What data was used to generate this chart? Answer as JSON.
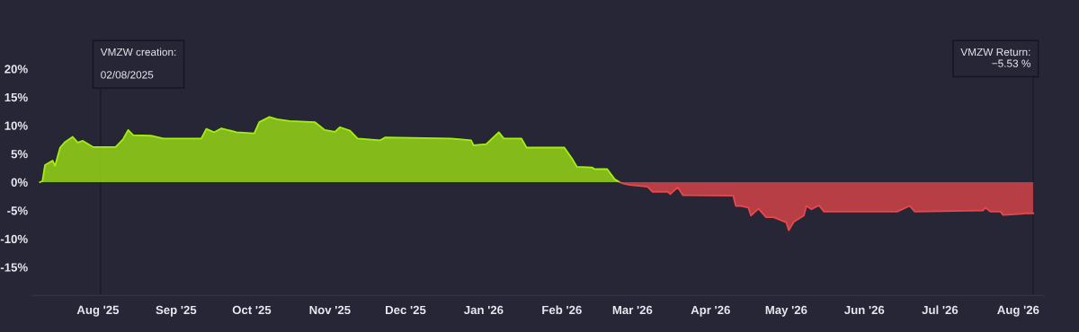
{
  "chart_data": {
    "type": "area",
    "series": [
      {
        "color": "#a4ee12",
        "x": [
          "2025-07-09",
          "2025-07-10",
          "2025-07-11",
          "2025-07-14",
          "2025-07-15",
          "2025-07-17",
          "2025-07-19",
          "2025-07-22",
          "2025-07-24",
          "2025-07-26",
          "2025-07-30",
          "2025-08-08",
          "2025-08-11",
          "2025-08-13",
          "2025-08-15",
          "2025-08-22",
          "2025-08-27",
          "2025-09-11",
          "2025-09-13",
          "2025-09-16",
          "2025-09-19",
          "2025-09-25",
          "2025-10-02",
          "2025-10-04",
          "2025-10-08",
          "2025-10-11",
          "2025-10-16",
          "2025-10-26",
          "2025-10-30",
          "2025-11-03",
          "2025-11-05",
          "2025-11-09",
          "2025-11-12",
          "2025-11-21",
          "2025-11-23",
          "2025-12-19",
          "2025-12-27",
          "2025-12-28",
          "2026-01-02",
          "2026-01-07",
          "2026-01-09",
          "2026-01-16",
          "2026-01-18",
          "2026-02-02",
          "2026-02-05",
          "2026-02-07",
          "2026-02-13",
          "2026-02-14",
          "2026-02-19",
          "2026-02-22",
          "2026-02-24"
        ],
        "values": [
          0,
          0.2,
          3.0,
          3.8,
          2.9,
          6.1,
          7.1,
          8.0,
          7.0,
          7.3,
          6.2,
          6.2,
          7.6,
          9.2,
          8.3,
          8.2,
          7.7,
          7.7,
          9.4,
          8.8,
          9.5,
          8.8,
          8.6,
          10.6,
          11.5,
          11.1,
          10.8,
          10.6,
          9.2,
          8.9,
          9.7,
          9.1,
          7.7,
          7.4,
          7.9,
          7.7,
          7.4,
          6.5,
          6.7,
          8.8,
          7.7,
          7.7,
          6.1,
          6.1,
          4.2,
          2.7,
          2.6,
          2.3,
          2.3,
          0.5,
          0
        ]
      },
      {
        "color": "#e8474b",
        "x": [
          "2026-02-24",
          "2026-02-25",
          "2026-02-28",
          "2026-03-07",
          "2026-03-09",
          "2026-03-15",
          "2026-03-16",
          "2026-03-19",
          "2026-03-21",
          "2026-04-10",
          "2026-04-11",
          "2026-04-13",
          "2026-04-16",
          "2026-04-17",
          "2026-04-20",
          "2026-04-23",
          "2026-04-26",
          "2026-05-01",
          "2026-05-02",
          "2026-05-04",
          "2026-05-08",
          "2026-05-09",
          "2026-05-11",
          "2026-05-14",
          "2026-05-16",
          "2026-06-14",
          "2026-06-19",
          "2026-06-21",
          "2026-07-18",
          "2026-07-19",
          "2026-07-21",
          "2026-07-25",
          "2026-07-26",
          "2026-08-02",
          "2026-08-04",
          "2026-08-07"
        ],
        "values": [
          0,
          -0.2,
          -0.5,
          -0.8,
          -1.7,
          -1.7,
          -2.1,
          -0.9,
          -2.3,
          -2.4,
          -4.2,
          -4.2,
          -4.5,
          -5.9,
          -4.7,
          -6.2,
          -6.2,
          -7.1,
          -8.5,
          -7.0,
          -5.9,
          -4.2,
          -4.8,
          -4.1,
          -5.2,
          -5.2,
          -4.2,
          -5.2,
          -5.0,
          -4.5,
          -5.2,
          -5.2,
          -5.8,
          -5.6,
          -5.5,
          -5.5
        ]
      }
    ],
    "xlim": [
      "2025-07-06",
      "2026-08-11"
    ],
    "xticks": [
      {
        "value": "2025-08-01",
        "label": "Aug '25"
      },
      {
        "value": "2025-09-01",
        "label": "Sep '25"
      },
      {
        "value": "2025-10-01",
        "label": "Oct '25"
      },
      {
        "value": "2025-11-01",
        "label": "Nov '25"
      },
      {
        "value": "2025-12-01",
        "label": "Dec '25"
      },
      {
        "value": "2026-01-01",
        "label": "Jan '26"
      },
      {
        "value": "2026-02-01",
        "label": "Feb '26"
      },
      {
        "value": "2026-03-01",
        "label": "Mar '26"
      },
      {
        "value": "2026-04-01",
        "label": "Apr '26"
      },
      {
        "value": "2026-05-01",
        "label": "May '26"
      },
      {
        "value": "2026-06-01",
        "label": "Jun '26"
      },
      {
        "value": "2026-07-01",
        "label": "Jul '26"
      },
      {
        "value": "2026-08-01",
        "label": "Aug '26"
      }
    ],
    "ylim": [
      -20,
      25
    ],
    "yticks": [
      {
        "value": -15,
        "label": "-15%"
      },
      {
        "value": -10,
        "label": "-10%"
      },
      {
        "value": -5,
        "label": "-5%"
      },
      {
        "value": 0,
        "label": "0%"
      },
      {
        "value": 5,
        "label": "5%"
      },
      {
        "value": 10,
        "label": "10%"
      },
      {
        "value": 15,
        "label": "15%"
      },
      {
        "value": 20,
        "label": "20%"
      }
    ],
    "ref_lines": [
      {
        "axis": "x",
        "value": "2025-08-02",
        "label": "VMZW creation:\n\n02/08/2025",
        "color": "#1c1c2a"
      },
      {
        "axis": "x",
        "value": "2026-08-07",
        "label": "VMZW Return:\n−5.53 %",
        "color": "#1c1c2a"
      }
    ],
    "grid": false,
    "legend": false
  }
}
